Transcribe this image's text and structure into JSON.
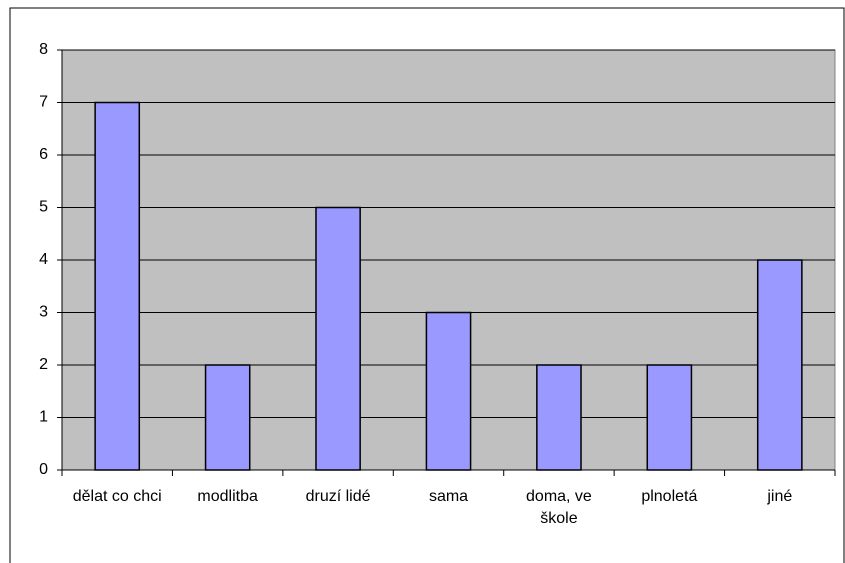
{
  "chart_data": {
    "type": "bar",
    "categories": [
      "dělat co chci",
      "modlitba",
      "druzí lidé",
      "sama",
      "doma, ve škole",
      "plnoletá",
      "jiné"
    ],
    "values": [
      7,
      2,
      5,
      3,
      2,
      2,
      4
    ],
    "color": "#9999ff",
    "plot_background": "#c0c0c0",
    "ylim": [
      0,
      8
    ],
    "yticks": [
      0,
      1,
      2,
      3,
      4,
      5,
      6,
      7,
      8
    ],
    "grid": true
  }
}
